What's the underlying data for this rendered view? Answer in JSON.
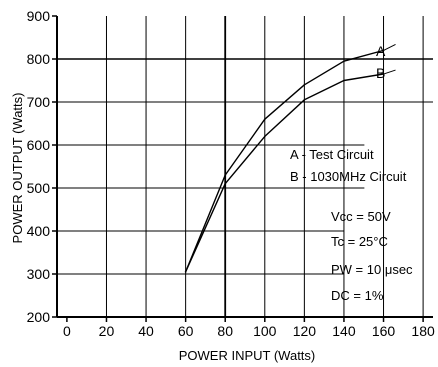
{
  "chart_data": {
    "type": "line",
    "title": "",
    "xlabel": "POWER INPUT (Watts)",
    "ylabel": "POWER OUTPUT (Watts)",
    "xlim": [
      -5,
      185
    ],
    "ylim": [
      200,
      900
    ],
    "xticks": [
      0,
      20,
      40,
      60,
      80,
      100,
      120,
      140,
      160,
      180
    ],
    "yticks": [
      200,
      300,
      400,
      500,
      600,
      700,
      800,
      900
    ],
    "series": [
      {
        "name": "A",
        "x": [
          60,
          80,
          100,
          120,
          140,
          160
        ],
        "y": [
          305,
          530,
          660,
          740,
          795,
          820
        ]
      },
      {
        "name": "B",
        "x": [
          60,
          80,
          100,
          120,
          140,
          160
        ],
        "y": [
          305,
          510,
          620,
          705,
          750,
          765
        ]
      }
    ],
    "legend": [
      "A - Test Circuit",
      "B - 1030MHz Circuit"
    ],
    "conditions": [
      "Vcc = 50V",
      "Tc = 25°C",
      "PW = 10 μsec",
      "DC = 1%"
    ],
    "grid": true,
    "line_color": "#000000"
  }
}
